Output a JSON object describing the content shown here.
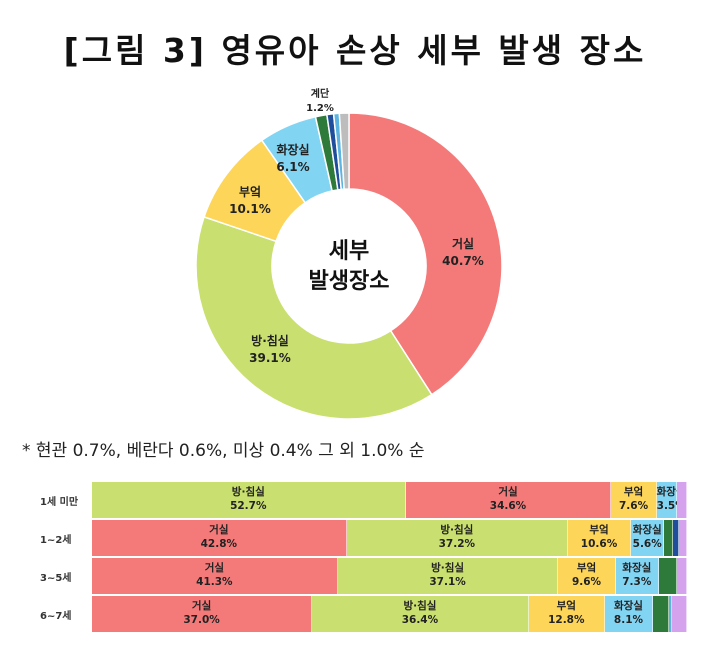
{
  "title": "[그림 3] 영유아 손상 세부 발생 장소",
  "note": "* 현관 0.7%, 베란다 0.6%, 미상 0.4% 그 외 1.0% 순",
  "colors": {
    "거실": "#f47a7a",
    "방·침실": "#c9df6f",
    "부엌": "#fcd559",
    "화장실": "#82d4f3",
    "계단": "#2e7a3a",
    "기타1": "#1f4f9c",
    "기타2": "#5bb5e0",
    "기타3": "#bdbdbd",
    "기타4": "#d5a3ee"
  },
  "chart_data": [
    {
      "type": "pie",
      "center_label": [
        "세부",
        "발생장소"
      ],
      "slices": [
        {
          "label": "거실",
          "value": 40.7,
          "text": "40.7%"
        },
        {
          "label": "방·침실",
          "value": 39.1,
          "text": "39.1%"
        },
        {
          "label": "부엌",
          "value": 10.1,
          "text": "10.1%"
        },
        {
          "label": "화장실",
          "value": 6.1,
          "text": "6.1%"
        },
        {
          "label": "계단",
          "value": 1.2,
          "text": "1.2%"
        },
        {
          "label": "기타1",
          "value": 0.7,
          "text": ""
        },
        {
          "label": "기타2",
          "value": 0.6,
          "text": ""
        },
        {
          "label": "기타3",
          "value": 1.0,
          "text": ""
        }
      ]
    },
    {
      "type": "bar",
      "stacked": true,
      "horizontal": true,
      "rows": [
        {
          "label": "1세 미만",
          "segments": [
            {
              "name": "방·침실",
              "value": 52.7,
              "text": "52.7%"
            },
            {
              "name": "거실",
              "value": 34.6,
              "text": "34.6%"
            },
            {
              "name": "부엌",
              "value": 7.6,
              "text": "7.6%"
            },
            {
              "name": "화장실",
              "value": 3.5,
              "text": "3.5%"
            },
            {
              "name": "기타4",
              "value": 1.6,
              "text": ""
            }
          ]
        },
        {
          "label": "1~2세",
          "segments": [
            {
              "name": "거실",
              "value": 42.8,
              "text": "42.8%"
            },
            {
              "name": "방·침실",
              "value": 37.2,
              "text": "37.2%"
            },
            {
              "name": "부엌",
              "value": 10.6,
              "text": "10.6%"
            },
            {
              "name": "화장실",
              "value": 5.6,
              "text": "5.6%"
            },
            {
              "name": "계단",
              "value": 1.5,
              "text": ""
            },
            {
              "name": "기타1",
              "value": 1.0,
              "text": ""
            },
            {
              "name": "기타4",
              "value": 1.3,
              "text": ""
            }
          ]
        },
        {
          "label": "3~5세",
          "segments": [
            {
              "name": "거실",
              "value": 41.3,
              "text": "41.3%"
            },
            {
              "name": "방·침실",
              "value": 37.1,
              "text": "37.1%"
            },
            {
              "name": "부엌",
              "value": 9.6,
              "text": "9.6%"
            },
            {
              "name": "화장실",
              "value": 7.3,
              "text": "7.3%"
            },
            {
              "name": "계단",
              "value": 3.0,
              "text": ""
            },
            {
              "name": "기타4",
              "value": 1.7,
              "text": ""
            }
          ]
        },
        {
          "label": "6~7세",
          "segments": [
            {
              "name": "거실",
              "value": 37.0,
              "text": "37.0%"
            },
            {
              "name": "방·침실",
              "value": 36.4,
              "text": "36.4%"
            },
            {
              "name": "부엌",
              "value": 12.8,
              "text": "12.8%"
            },
            {
              "name": "화장실",
              "value": 8.1,
              "text": "8.1%"
            },
            {
              "name": "계단",
              "value": 2.7,
              "text": ""
            },
            {
              "name": "기타2",
              "value": 0.5,
              "text": ""
            },
            {
              "name": "기타4",
              "value": 2.5,
              "text": ""
            }
          ]
        }
      ]
    }
  ]
}
